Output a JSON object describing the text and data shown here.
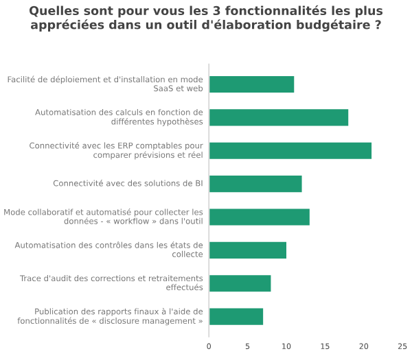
{
  "chart_data": {
    "type": "bar",
    "orientation": "horizontal",
    "title": "Quelles sont pour vous les 3 fonctionnalités les plus appréciées dans un outil d'élaboration budgétaire ?",
    "categories": [
      "Facilité de déploiement et d'installation en mode SaaS et web",
      "Automatisation des calculs en fonction de différentes hypothèses",
      "Connectivité avec les ERP comptables pour comparer prévisions et réel",
      "Connectivité avec des solutions de BI",
      "Mode collaboratif et automatisé pour collecter les données - « workflow » dans l'outil",
      "Automatisation des contrôles dans les états de collecte",
      "Trace d'audit des corrections et retraitements effectués",
      "Publication des rapports finaux à l'aide de fonctionnalités de « disclosure management »"
    ],
    "values": [
      11,
      18,
      21,
      12,
      13,
      10,
      8,
      7
    ],
    "color": "#1e9a73",
    "xlim": [
      0,
      25
    ],
    "xticks": [
      0,
      5,
      10,
      15,
      20,
      25
    ],
    "grid": false
  }
}
